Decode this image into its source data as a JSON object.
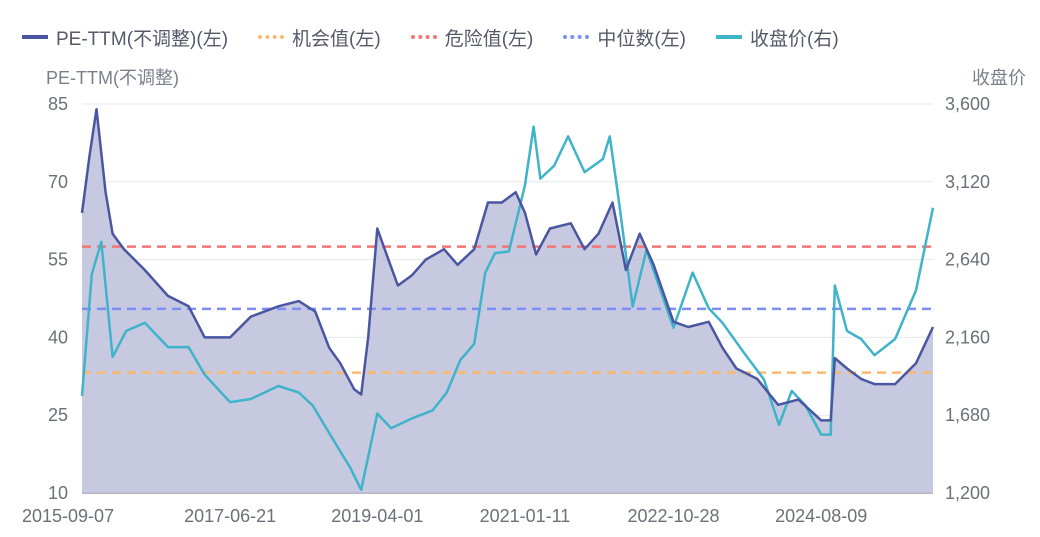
{
  "legend": [
    {
      "label": "PE-TTM(不调整)(左)",
      "color": "#4a56a1",
      "style": "solid"
    },
    {
      "label": "机会值(左)",
      "color": "#f9b96f",
      "style": "dotted"
    },
    {
      "label": "危险值(左)",
      "color": "#f47575",
      "style": "dotted"
    },
    {
      "label": "中位数(左)",
      "color": "#7f8ef5",
      "style": "dotted"
    },
    {
      "label": "收盘价(右)",
      "color": "#3fb3c9",
      "style": "solid"
    }
  ],
  "axis_titles": {
    "left": "PE-TTM(不调整)",
    "right": "收盘价"
  },
  "chart_data": {
    "type": "line",
    "x_ticks": [
      "2015-09-07",
      "2017-06-21",
      "2019-04-01",
      "2021-01-11",
      "2022-10-28",
      "2024-08-09"
    ],
    "x_range": [
      "2015-09-07",
      "2025-12-15"
    ],
    "y_left": {
      "label": "PE-TTM(不调整)",
      "ticks": [
        "85",
        "70",
        "55",
        "40",
        "25",
        "10"
      ],
      "range": [
        10,
        85
      ]
    },
    "y_right": {
      "label": "收盘价",
      "ticks": [
        "3,600",
        "3,120",
        "2,640",
        "2,160",
        "1,680",
        "1,200"
      ],
      "range": [
        1200,
        3600
      ]
    },
    "reference_lines": [
      {
        "name": "机会值(左)",
        "value": 33.2,
        "color": "#f9b96f"
      },
      {
        "name": "危险值(左)",
        "value": 57.5,
        "color": "#f47575"
      },
      {
        "name": "中位数(左)",
        "value": 45.5,
        "color": "#7f8ef5"
      }
    ],
    "series": [
      {
        "name": "PE-TTM(不调整)(左)",
        "axis": "left",
        "color": "#4a56a1",
        "area": true,
        "points": [
          [
            "2015-09-07",
            64
          ],
          [
            "2015-10-10",
            75
          ],
          [
            "2015-11-10",
            84
          ],
          [
            "2015-12-20",
            68
          ],
          [
            "2016-01-20",
            60
          ],
          [
            "2016-03-10",
            57
          ],
          [
            "2016-06-10",
            53
          ],
          [
            "2016-09-20",
            48
          ],
          [
            "2016-12-20",
            46
          ],
          [
            "2017-03-01",
            40
          ],
          [
            "2017-06-21",
            40
          ],
          [
            "2017-09-20",
            44
          ],
          [
            "2018-01-20",
            46
          ],
          [
            "2018-04-20",
            47
          ],
          [
            "2018-07-01",
            45
          ],
          [
            "2018-09-01",
            38
          ],
          [
            "2018-10-20",
            35
          ],
          [
            "2018-12-20",
            30
          ],
          [
            "2019-01-20",
            29
          ],
          [
            "2019-02-20",
            40
          ],
          [
            "2019-04-01",
            61
          ],
          [
            "2019-05-20",
            55
          ],
          [
            "2019-07-01",
            50
          ],
          [
            "2019-09-01",
            52
          ],
          [
            "2019-11-01",
            55
          ],
          [
            "2020-01-20",
            57
          ],
          [
            "2020-03-20",
            54
          ],
          [
            "2020-06-01",
            57
          ],
          [
            "2020-08-01",
            66
          ],
          [
            "2020-10-01",
            66
          ],
          [
            "2020-12-01",
            68
          ],
          [
            "2021-01-11",
            64
          ],
          [
            "2021-03-01",
            56
          ],
          [
            "2021-05-01",
            61
          ],
          [
            "2021-08-01",
            62
          ],
          [
            "2021-10-01",
            57
          ],
          [
            "2021-12-01",
            60
          ],
          [
            "2022-02-01",
            66
          ],
          [
            "2022-04-01",
            53
          ],
          [
            "2022-06-01",
            60
          ],
          [
            "2022-08-01",
            54
          ],
          [
            "2022-10-28",
            43
          ],
          [
            "2023-01-01",
            42
          ],
          [
            "2023-04-01",
            43
          ],
          [
            "2023-06-01",
            38
          ],
          [
            "2023-08-01",
            34
          ],
          [
            "2023-11-01",
            32
          ],
          [
            "2024-02-01",
            27
          ],
          [
            "2024-05-01",
            28
          ],
          [
            "2024-08-09",
            24
          ],
          [
            "2024-09-20",
            24
          ],
          [
            "2024-10-08",
            36
          ],
          [
            "2024-12-01",
            34
          ],
          [
            "2025-02-01",
            32
          ],
          [
            "2025-04-01",
            31
          ],
          [
            "2025-07-01",
            31
          ],
          [
            "2025-10-01",
            35
          ],
          [
            "2025-12-15",
            42
          ]
        ]
      },
      {
        "name": "收盘价(右)",
        "axis": "right",
        "color": "#3fb3c9",
        "area": false,
        "points": [
          [
            "2015-09-07",
            1800
          ],
          [
            "2015-10-20",
            2550
          ],
          [
            "2015-12-01",
            2750
          ],
          [
            "2016-01-20",
            2040
          ],
          [
            "2016-03-20",
            2200
          ],
          [
            "2016-06-10",
            2250
          ],
          [
            "2016-09-20",
            2100
          ],
          [
            "2016-12-20",
            2100
          ],
          [
            "2017-03-01",
            1930
          ],
          [
            "2017-06-21",
            1760
          ],
          [
            "2017-09-20",
            1780
          ],
          [
            "2018-01-20",
            1860
          ],
          [
            "2018-04-20",
            1820
          ],
          [
            "2018-06-20",
            1740
          ],
          [
            "2018-10-01",
            1500
          ],
          [
            "2018-12-01",
            1360
          ],
          [
            "2019-01-20",
            1220
          ],
          [
            "2019-04-01",
            1690
          ],
          [
            "2019-06-01",
            1600
          ],
          [
            "2019-09-01",
            1660
          ],
          [
            "2019-12-01",
            1710
          ],
          [
            "2020-02-01",
            1820
          ],
          [
            "2020-04-01",
            2020
          ],
          [
            "2020-06-01",
            2120
          ],
          [
            "2020-07-20",
            2560
          ],
          [
            "2020-09-01",
            2680
          ],
          [
            "2020-11-01",
            2690
          ],
          [
            "2021-01-11",
            3100
          ],
          [
            "2021-02-18",
            3460
          ],
          [
            "2021-03-20",
            3140
          ],
          [
            "2021-05-20",
            3220
          ],
          [
            "2021-07-20",
            3400
          ],
          [
            "2021-10-01",
            3180
          ],
          [
            "2021-12-20",
            3260
          ],
          [
            "2022-01-20",
            3400
          ],
          [
            "2022-03-01",
            3000
          ],
          [
            "2022-05-01",
            2350
          ],
          [
            "2022-07-01",
            2700
          ],
          [
            "2022-10-28",
            2220
          ],
          [
            "2023-01-20",
            2560
          ],
          [
            "2023-04-01",
            2340
          ],
          [
            "2023-06-01",
            2250
          ],
          [
            "2023-09-01",
            2070
          ],
          [
            "2023-12-01",
            1900
          ],
          [
            "2024-02-05",
            1620
          ],
          [
            "2024-04-01",
            1830
          ],
          [
            "2024-06-01",
            1740
          ],
          [
            "2024-08-09",
            1560
          ],
          [
            "2024-09-20",
            1560
          ],
          [
            "2024-10-08",
            2480
          ],
          [
            "2024-12-01",
            2200
          ],
          [
            "2025-02-01",
            2150
          ],
          [
            "2025-04-01",
            2050
          ],
          [
            "2025-07-01",
            2150
          ],
          [
            "2025-10-01",
            2450
          ],
          [
            "2025-12-15",
            2960
          ]
        ]
      }
    ]
  }
}
